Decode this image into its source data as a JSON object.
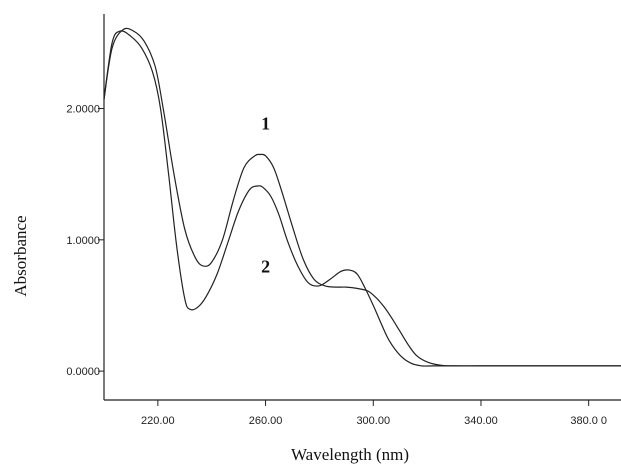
{
  "chart_data": {
    "type": "line",
    "title": "",
    "xlabel": "Wavelength (nm)",
    "ylabel": "Absorbance",
    "xlim": [
      200,
      392
    ],
    "ylim": [
      -0.22,
      2.72
    ],
    "x_ticks": [
      {
        "value": 220,
        "label": "220.00"
      },
      {
        "value": 260,
        "label": "260.00"
      },
      {
        "value": 300,
        "label": "300.00"
      },
      {
        "value": 340,
        "label": "340.00"
      },
      {
        "value": 380,
        "label": "380.0 0"
      }
    ],
    "y_ticks": [
      {
        "value": 0,
        "label": "0.0000"
      },
      {
        "value": 1,
        "label": "1.0000"
      },
      {
        "value": 2,
        "label": "2.0000"
      }
    ],
    "grid": false,
    "legend": "none",
    "series": [
      {
        "name": "1",
        "x": [
          200,
          203,
          207,
          211,
          215,
          219,
          222,
          226,
          230,
          234,
          237,
          240,
          244,
          248,
          252,
          256,
          258,
          260,
          263,
          266,
          270,
          274,
          278,
          282,
          286,
          290,
          294,
          298,
          301,
          304,
          307,
          310,
          313,
          316,
          320,
          325,
          330,
          340,
          360,
          392
        ],
        "y": [
          2.07,
          2.46,
          2.6,
          2.59,
          2.51,
          2.32,
          2.0,
          1.5,
          1.08,
          0.86,
          0.8,
          0.83,
          1.0,
          1.3,
          1.55,
          1.64,
          1.65,
          1.64,
          1.55,
          1.37,
          1.1,
          0.85,
          0.7,
          0.65,
          0.64,
          0.64,
          0.63,
          0.61,
          0.56,
          0.49,
          0.4,
          0.3,
          0.2,
          0.12,
          0.07,
          0.045,
          0.04,
          0.04,
          0.04,
          0.04
        ]
      },
      {
        "name": "2",
        "x": [
          200,
          203,
          206,
          210,
          214,
          218,
          221,
          224,
          227,
          230,
          232,
          235,
          238,
          242,
          246,
          250,
          254,
          257,
          259,
          262,
          265,
          268,
          272,
          276,
          280,
          284,
          288,
          291,
          294,
          297,
          300,
          303,
          306,
          310,
          314,
          318,
          322,
          330,
          340,
          360,
          392
        ],
        "y": [
          2.07,
          2.5,
          2.59,
          2.55,
          2.46,
          2.28,
          2.0,
          1.5,
          0.95,
          0.55,
          0.47,
          0.49,
          0.57,
          0.74,
          0.98,
          1.22,
          1.38,
          1.41,
          1.4,
          1.33,
          1.19,
          1.0,
          0.8,
          0.67,
          0.65,
          0.7,
          0.76,
          0.77,
          0.74,
          0.63,
          0.5,
          0.36,
          0.23,
          0.12,
          0.06,
          0.04,
          0.04,
          0.04,
          0.04,
          0.04,
          0.04
        ]
      }
    ],
    "annotations": [
      {
        "text": "1",
        "x": 260,
        "y": 1.84
      },
      {
        "text": "2",
        "x": 260,
        "y": 0.75
      }
    ]
  }
}
